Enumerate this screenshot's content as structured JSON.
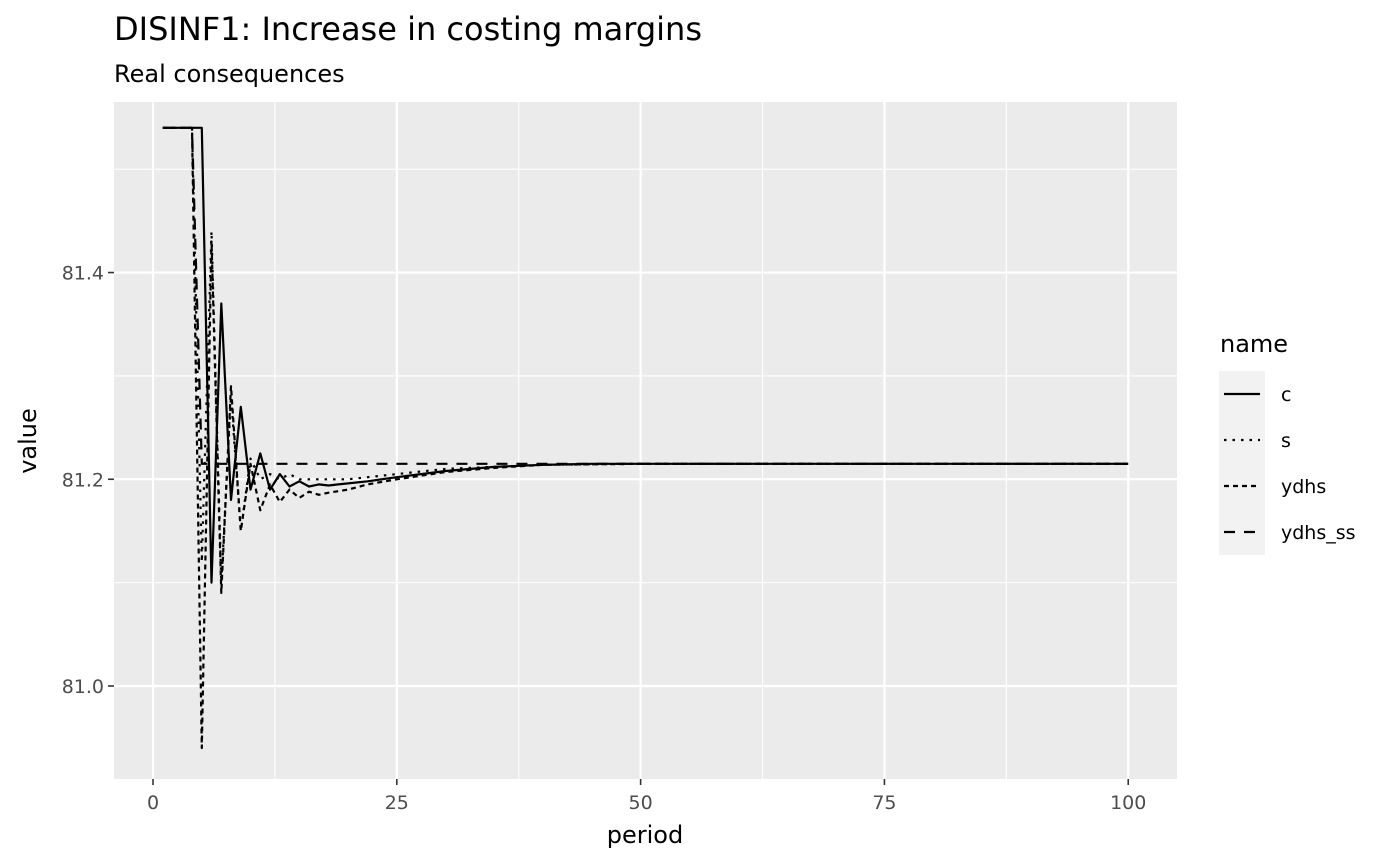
{
  "chart_data": {
    "type": "line",
    "title": "DISINF1: Increase in costing margins",
    "subtitle": "Real consequences",
    "xlabel": "period",
    "ylabel": "value",
    "xlim": [
      -4,
      105
    ],
    "ylim": [
      80.91,
      81.565
    ],
    "x_ticks": [
      0,
      25,
      50,
      75,
      100
    ],
    "x_tick_labels": [
      "0",
      "25",
      "50",
      "75",
      "100"
    ],
    "y_ticks": [
      81.0,
      81.2,
      81.4
    ],
    "y_tick_labels": [
      "81.0",
      "81.2",
      "81.4"
    ],
    "grid": true,
    "legend": {
      "title": "name",
      "position": "right"
    },
    "series": [
      {
        "name": "c",
        "dash": "solid",
        "points": [
          [
            1,
            81.54
          ],
          [
            2,
            81.54
          ],
          [
            3,
            81.54
          ],
          [
            4,
            81.54
          ],
          [
            5,
            81.54
          ],
          [
            6,
            81.1
          ],
          [
            7,
            81.37
          ],
          [
            8,
            81.18
          ],
          [
            9,
            81.27
          ],
          [
            10,
            81.19
          ],
          [
            11,
            81.225
          ],
          [
            12,
            81.19
          ],
          [
            13,
            81.205
          ],
          [
            14,
            81.193
          ],
          [
            15,
            81.198
          ],
          [
            16,
            81.193
          ],
          [
            17,
            81.195
          ],
          [
            18,
            81.194
          ],
          [
            19,
            81.195
          ],
          [
            20,
            81.196
          ],
          [
            22,
            81.198
          ],
          [
            25,
            81.202
          ],
          [
            30,
            81.208
          ],
          [
            35,
            81.212
          ],
          [
            40,
            81.214
          ],
          [
            45,
            81.215
          ],
          [
            50,
            81.215
          ],
          [
            60,
            81.215
          ],
          [
            70,
            81.215
          ],
          [
            80,
            81.215
          ],
          [
            90,
            81.215
          ],
          [
            100,
            81.215
          ]
        ]
      },
      {
        "name": "s",
        "dash": "dotted",
        "points": [
          [
            1,
            81.54
          ],
          [
            2,
            81.54
          ],
          [
            3,
            81.54
          ],
          [
            4,
            81.54
          ],
          [
            5,
            81.12
          ],
          [
            6,
            81.44
          ],
          [
            7,
            81.1
          ],
          [
            8,
            81.28
          ],
          [
            9,
            81.15
          ],
          [
            10,
            81.22
          ],
          [
            11,
            81.2
          ],
          [
            12,
            81.205
          ],
          [
            13,
            81.2
          ],
          [
            14,
            81.205
          ],
          [
            15,
            81.2
          ],
          [
            20,
            81.2
          ],
          [
            25,
            81.205
          ],
          [
            30,
            81.21
          ],
          [
            40,
            81.214
          ],
          [
            50,
            81.215
          ],
          [
            75,
            81.215
          ],
          [
            100,
            81.215
          ]
        ]
      },
      {
        "name": "ydhs",
        "dash": "dashdot",
        "points": [
          [
            1,
            81.54
          ],
          [
            2,
            81.54
          ],
          [
            3,
            81.54
          ],
          [
            4,
            81.54
          ],
          [
            5,
            80.94
          ],
          [
            6,
            81.43
          ],
          [
            7,
            81.09
          ],
          [
            8,
            81.29
          ],
          [
            9,
            81.15
          ],
          [
            10,
            81.215
          ],
          [
            11,
            81.17
          ],
          [
            12,
            81.195
          ],
          [
            13,
            81.178
          ],
          [
            14,
            81.19
          ],
          [
            15,
            81.182
          ],
          [
            16,
            81.188
          ],
          [
            17,
            81.185
          ],
          [
            18,
            81.187
          ],
          [
            20,
            81.19
          ],
          [
            22,
            81.195
          ],
          [
            25,
            81.2
          ],
          [
            30,
            81.207
          ],
          [
            35,
            81.211
          ],
          [
            40,
            81.214
          ],
          [
            50,
            81.215
          ],
          [
            75,
            81.215
          ],
          [
            100,
            81.215
          ]
        ]
      },
      {
        "name": "ydhs_ss",
        "dash": "dashed",
        "points": [
          [
            1,
            81.54
          ],
          [
            2,
            81.54
          ],
          [
            3,
            81.54
          ],
          [
            4,
            81.54
          ],
          [
            5,
            81.215
          ],
          [
            10,
            81.215
          ],
          [
            20,
            81.215
          ],
          [
            30,
            81.215
          ],
          [
            40,
            81.215
          ],
          [
            50,
            81.215
          ],
          [
            60,
            81.215
          ],
          [
            70,
            81.215
          ],
          [
            80,
            81.215
          ],
          [
            90,
            81.215
          ],
          [
            100,
            81.215
          ]
        ]
      }
    ]
  }
}
